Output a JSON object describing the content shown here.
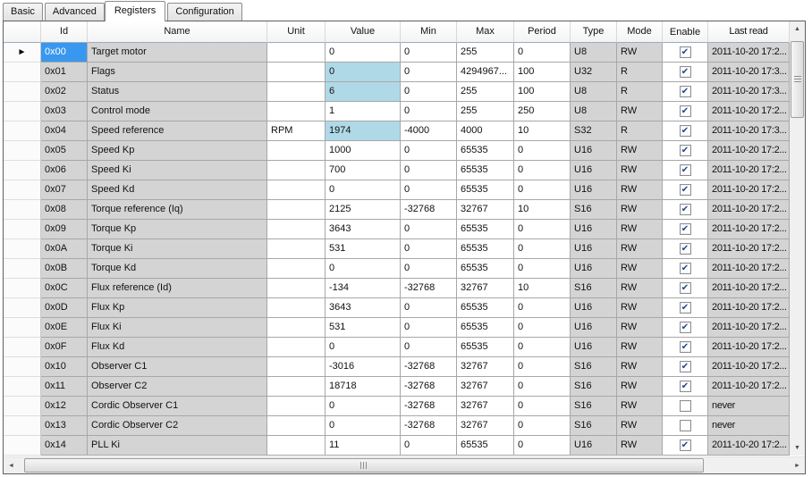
{
  "tabs": [
    {
      "label": "Basic",
      "selected": false
    },
    {
      "label": "Advanced",
      "selected": false
    },
    {
      "label": "Registers",
      "selected": true
    },
    {
      "label": "Configuration",
      "selected": false
    }
  ],
  "grid": {
    "columns": [
      "Id",
      "Name",
      "Unit",
      "Value",
      "Min",
      "Max",
      "Period",
      "Type",
      "Mode",
      "Enable",
      "Last read"
    ],
    "rows": [
      {
        "id": "0x00",
        "name": "Target motor",
        "unit": "",
        "value": "0",
        "value_highlight": false,
        "min": "0",
        "max": "255",
        "period": "0",
        "type": "U8",
        "mode": "RW",
        "enabled": true,
        "last_read": "2011-10-20 17:2...",
        "current": true,
        "selected": true
      },
      {
        "id": "0x01",
        "name": "Flags",
        "unit": "",
        "value": "0",
        "value_highlight": true,
        "min": "0",
        "max": "4294967...",
        "period": "100",
        "type": "U32",
        "mode": "R",
        "enabled": true,
        "last_read": "2011-10-20 17:3...",
        "current": false,
        "selected": false
      },
      {
        "id": "0x02",
        "name": "Status",
        "unit": "",
        "value": "6",
        "value_highlight": true,
        "min": "0",
        "max": "255",
        "period": "100",
        "type": "U8",
        "mode": "R",
        "enabled": true,
        "last_read": "2011-10-20 17:3...",
        "current": false,
        "selected": false
      },
      {
        "id": "0x03",
        "name": "Control mode",
        "unit": "",
        "value": "1",
        "value_highlight": false,
        "min": "0",
        "max": "255",
        "period": "250",
        "type": "U8",
        "mode": "RW",
        "enabled": true,
        "last_read": "2011-10-20 17:2...",
        "current": false,
        "selected": false
      },
      {
        "id": "0x04",
        "name": "Speed reference",
        "unit": "RPM",
        "value": "1974",
        "value_highlight": true,
        "min": "-4000",
        "max": "4000",
        "period": "10",
        "type": "S32",
        "mode": "R",
        "enabled": true,
        "last_read": "2011-10-20 17:3...",
        "current": false,
        "selected": false
      },
      {
        "id": "0x05",
        "name": "Speed Kp",
        "unit": "",
        "value": "1000",
        "value_highlight": false,
        "min": "0",
        "max": "65535",
        "period": "0",
        "type": "U16",
        "mode": "RW",
        "enabled": true,
        "last_read": "2011-10-20 17:2...",
        "current": false,
        "selected": false
      },
      {
        "id": "0x06",
        "name": "Speed Ki",
        "unit": "",
        "value": "700",
        "value_highlight": false,
        "min": "0",
        "max": "65535",
        "period": "0",
        "type": "U16",
        "mode": "RW",
        "enabled": true,
        "last_read": "2011-10-20 17:2...",
        "current": false,
        "selected": false
      },
      {
        "id": "0x07",
        "name": "Speed Kd",
        "unit": "",
        "value": "0",
        "value_highlight": false,
        "min": "0",
        "max": "65535",
        "period": "0",
        "type": "U16",
        "mode": "RW",
        "enabled": true,
        "last_read": "2011-10-20 17:2...",
        "current": false,
        "selected": false
      },
      {
        "id": "0x08",
        "name": "Torque reference (Iq)",
        "unit": "",
        "value": "2125",
        "value_highlight": false,
        "min": "-32768",
        "max": "32767",
        "period": "10",
        "type": "S16",
        "mode": "RW",
        "enabled": true,
        "last_read": "2011-10-20 17:2...",
        "current": false,
        "selected": false
      },
      {
        "id": "0x09",
        "name": "Torque Kp",
        "unit": "",
        "value": "3643",
        "value_highlight": false,
        "min": "0",
        "max": "65535",
        "period": "0",
        "type": "U16",
        "mode": "RW",
        "enabled": true,
        "last_read": "2011-10-20 17:2...",
        "current": false,
        "selected": false
      },
      {
        "id": "0x0A",
        "name": "Torque Ki",
        "unit": "",
        "value": "531",
        "value_highlight": false,
        "min": "0",
        "max": "65535",
        "period": "0",
        "type": "U16",
        "mode": "RW",
        "enabled": true,
        "last_read": "2011-10-20 17:2...",
        "current": false,
        "selected": false
      },
      {
        "id": "0x0B",
        "name": "Torque Kd",
        "unit": "",
        "value": "0",
        "value_highlight": false,
        "min": "0",
        "max": "65535",
        "period": "0",
        "type": "U16",
        "mode": "RW",
        "enabled": true,
        "last_read": "2011-10-20 17:2...",
        "current": false,
        "selected": false
      },
      {
        "id": "0x0C",
        "name": "Flux reference (Id)",
        "unit": "",
        "value": "-134",
        "value_highlight": false,
        "min": "-32768",
        "max": "32767",
        "period": "10",
        "type": "S16",
        "mode": "RW",
        "enabled": true,
        "last_read": "2011-10-20 17:2...",
        "current": false,
        "selected": false
      },
      {
        "id": "0x0D",
        "name": "Flux Kp",
        "unit": "",
        "value": "3643",
        "value_highlight": false,
        "min": "0",
        "max": "65535",
        "period": "0",
        "type": "U16",
        "mode": "RW",
        "enabled": true,
        "last_read": "2011-10-20 17:2...",
        "current": false,
        "selected": false
      },
      {
        "id": "0x0E",
        "name": "Flux Ki",
        "unit": "",
        "value": "531",
        "value_highlight": false,
        "min": "0",
        "max": "65535",
        "period": "0",
        "type": "U16",
        "mode": "RW",
        "enabled": true,
        "last_read": "2011-10-20 17:2...",
        "current": false,
        "selected": false
      },
      {
        "id": "0x0F",
        "name": "Flux Kd",
        "unit": "",
        "value": "0",
        "value_highlight": false,
        "min": "0",
        "max": "65535",
        "period": "0",
        "type": "U16",
        "mode": "RW",
        "enabled": true,
        "last_read": "2011-10-20 17:2...",
        "current": false,
        "selected": false
      },
      {
        "id": "0x10",
        "name": "Observer C1",
        "unit": "",
        "value": "-3016",
        "value_highlight": false,
        "min": "-32768",
        "max": "32767",
        "period": "0",
        "type": "S16",
        "mode": "RW",
        "enabled": true,
        "last_read": "2011-10-20 17:2...",
        "current": false,
        "selected": false
      },
      {
        "id": "0x11",
        "name": "Observer C2",
        "unit": "",
        "value": "18718",
        "value_highlight": false,
        "min": "-32768",
        "max": "32767",
        "period": "0",
        "type": "S16",
        "mode": "RW",
        "enabled": true,
        "last_read": "2011-10-20 17:2...",
        "current": false,
        "selected": false
      },
      {
        "id": "0x12",
        "name": "Cordic Observer C1",
        "unit": "",
        "value": "0",
        "value_highlight": false,
        "min": "-32768",
        "max": "32767",
        "period": "0",
        "type": "S16",
        "mode": "RW",
        "enabled": false,
        "last_read": "never",
        "current": false,
        "selected": false
      },
      {
        "id": "0x13",
        "name": "Cordic Observer C2",
        "unit": "",
        "value": "0",
        "value_highlight": false,
        "min": "-32768",
        "max": "32767",
        "period": "0",
        "type": "S16",
        "mode": "RW",
        "enabled": false,
        "last_read": "never",
        "current": false,
        "selected": false
      },
      {
        "id": "0x14",
        "name": "PLL Ki",
        "unit": "",
        "value": "11",
        "value_highlight": false,
        "min": "0",
        "max": "65535",
        "period": "0",
        "type": "U16",
        "mode": "RW",
        "enabled": true,
        "last_read": "2011-10-20 17:2...",
        "current": false,
        "selected": false
      }
    ],
    "colors": {
      "selected_cell": "#3898f0",
      "value_highlight": "#b0d9e8",
      "gray_cell": "#d4d4d4"
    }
  },
  "icons": {
    "current_row_arrow": "►",
    "checkbox_check": "✔",
    "scroll_up": "▲",
    "scroll_down": "▼",
    "scroll_left": "◄",
    "scroll_right": "►"
  }
}
